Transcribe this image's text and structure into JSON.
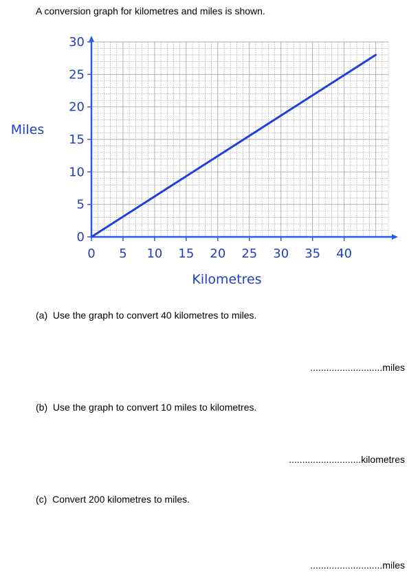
{
  "intro": "A conversion graph for kilometres and miles is shown.",
  "chart_data": {
    "type": "line",
    "xlabel": "Kilometres",
    "ylabel": "Miles",
    "xlim": [
      0,
      47
    ],
    "ylim": [
      0,
      30
    ],
    "xticks": [
      0,
      5,
      10,
      15,
      20,
      25,
      30,
      35,
      40
    ],
    "yticks": [
      0,
      5,
      10,
      15,
      20,
      25,
      30
    ],
    "grid": true,
    "grid_minor_step": 1,
    "series": [
      {
        "x": [
          0,
          45
        ],
        "y": [
          0,
          28
        ]
      }
    ],
    "colors": {
      "line": "#1f3fdf",
      "axis": "#2a5ae8",
      "label": "#1f3fbf",
      "grid": "#a8a8a8"
    }
  },
  "questions": [
    {
      "label": "(a)",
      "text": "Use the graph to convert 40 kilometres to miles.",
      "answer_line": "...........................miles"
    },
    {
      "label": "(b)",
      "text": "Use the graph to convert 10 miles to kilometres.",
      "answer_line": "...........................kilometres"
    },
    {
      "label": "(c)",
      "text": "Convert 200 kilometres to miles.",
      "answer_line": "...........................miles"
    }
  ]
}
